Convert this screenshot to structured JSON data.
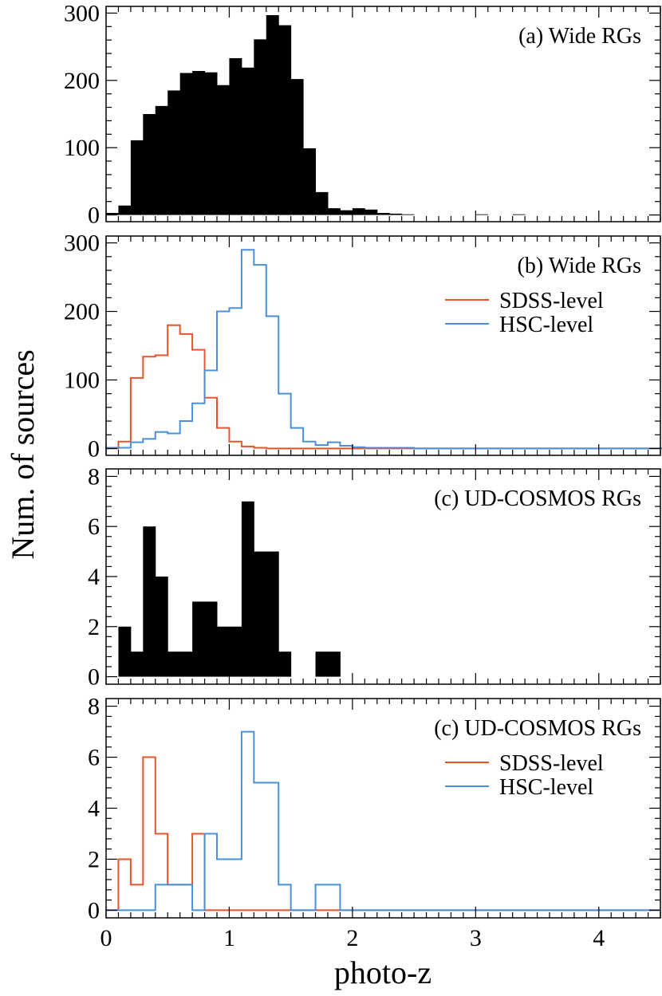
{
  "figure": {
    "ylabel": "Num. of sources",
    "xlabel": "photo-z",
    "xlim": [
      0,
      4.5
    ],
    "xticks": [
      0,
      1,
      2,
      3,
      4
    ]
  },
  "chart_data": [
    {
      "type": "bar",
      "title": "(a) Wide RGs",
      "ylim": [
        -10,
        310
      ],
      "yticks": [
        0,
        100,
        200,
        300
      ],
      "bin_width": 0.1,
      "x_start": 0,
      "filled": true,
      "series": [
        {
          "name": "",
          "color": "#000000",
          "values": [
            3,
            14,
            111,
            150,
            162,
            185,
            211,
            214,
            212,
            193,
            233,
            219,
            261,
            297,
            282,
            202,
            99,
            34,
            10,
            7,
            10,
            8,
            3,
            2,
            1,
            0,
            0,
            0,
            0,
            0,
            1,
            0,
            0,
            1,
            0,
            0,
            0,
            0,
            0,
            0,
            0,
            0,
            0,
            0,
            0,
            0,
            0,
            0,
            0,
            0,
            0,
            0,
            0,
            0,
            0,
            0,
            0,
            0,
            0,
            0,
            0,
            0,
            0,
            0,
            0,
            0,
            0,
            0,
            0,
            0,
            0,
            0,
            0,
            0,
            0,
            0,
            0,
            0,
            0,
            0,
            0,
            0,
            0,
            0,
            0,
            0,
            0,
            0,
            0,
            0
          ]
        }
      ]
    },
    {
      "type": "bar",
      "title": "(b) Wide RGs",
      "ylim": [
        -10,
        310
      ],
      "yticks": [
        0,
        100,
        200,
        300
      ],
      "bin_width": 0.1,
      "x_start": 0,
      "filled": false,
      "legend": "top-right",
      "series": [
        {
          "name": "SDSS-level",
          "color": "#e8542a",
          "values": [
            0,
            10,
            103,
            134,
            136,
            180,
            167,
            144,
            74,
            30,
            10,
            3,
            1,
            0,
            0,
            0,
            0,
            0,
            0,
            0,
            0,
            0,
            0,
            0,
            0,
            0,
            0,
            0,
            0,
            0,
            0,
            0,
            0,
            0,
            0,
            0,
            0,
            0,
            0,
            0,
            0,
            0,
            0,
            0,
            0,
            0,
            0,
            0,
            0,
            0,
            0,
            0,
            0,
            0,
            0,
            0,
            0,
            0,
            0,
            0,
            0,
            0,
            0,
            0,
            0,
            0,
            0,
            0,
            0,
            0,
            0,
            0,
            0,
            0,
            0,
            0,
            0,
            0,
            0,
            0,
            0,
            0,
            0,
            0,
            0,
            0,
            0,
            0,
            0,
            0
          ]
        },
        {
          "name": "HSC-level",
          "color": "#4a8fdc",
          "values": [
            1,
            1,
            9,
            14,
            24,
            22,
            40,
            66,
            114,
            200,
            205,
            290,
            268,
            193,
            80,
            30,
            10,
            5,
            9,
            4,
            2,
            1,
            1,
            1,
            1,
            0,
            0,
            0,
            0,
            0,
            0,
            0,
            0,
            0,
            0,
            0,
            0,
            0,
            0,
            0,
            0,
            0,
            0,
            0,
            0,
            0,
            0,
            0,
            0,
            0,
            0,
            0,
            0,
            0,
            0,
            0,
            0,
            0,
            0,
            0,
            0,
            0,
            0,
            0,
            0,
            0,
            0,
            0,
            0,
            0,
            0,
            0,
            0,
            0,
            0,
            0,
            0,
            0,
            0,
            0,
            0,
            0,
            0,
            0,
            0,
            0,
            0,
            0,
            0,
            0
          ]
        }
      ]
    },
    {
      "type": "bar",
      "title": "(c) UD-COSMOS RGs",
      "ylim": [
        -0.3,
        8.3
      ],
      "yticks": [
        0,
        2,
        4,
        6,
        8
      ],
      "bin_width": 0.1,
      "x_start": 0,
      "filled": true,
      "series": [
        {
          "name": "",
          "color": "#000000",
          "values": [
            0,
            2,
            1,
            6,
            4,
            1,
            1,
            3,
            3,
            2,
            2,
            7,
            5,
            5,
            1,
            0,
            0,
            1,
            1,
            0,
            0,
            0,
            0,
            0,
            0,
            0,
            0,
            0,
            0,
            0,
            0,
            0,
            0,
            0,
            0,
            0,
            0,
            0,
            0,
            0,
            0,
            0,
            0,
            0,
            0
          ]
        }
      ]
    },
    {
      "type": "bar",
      "title": "(c) UD-COSMOS RGs",
      "ylim": [
        -0.3,
        8.3
      ],
      "yticks": [
        0,
        2,
        4,
        6,
        8
      ],
      "bin_width": 0.1,
      "x_start": 0,
      "filled": false,
      "legend": "top-right",
      "series": [
        {
          "name": "SDSS-level",
          "color": "#e8542a",
          "values": [
            0,
            2,
            1,
            6,
            3,
            1,
            1,
            3,
            0,
            0,
            0,
            0,
            0,
            0,
            0,
            0,
            0,
            0,
            0,
            0,
            0,
            0,
            0,
            0,
            0,
            0,
            0,
            0,
            0,
            0,
            0,
            0,
            0,
            0,
            0,
            0,
            0,
            0,
            0,
            0,
            0,
            0,
            0,
            0,
            0
          ]
        },
        {
          "name": "HSC-level",
          "color": "#4a8fdc",
          "values": [
            0,
            0,
            0,
            0,
            1,
            1,
            1,
            0,
            3,
            2,
            2,
            7,
            5,
            5,
            1,
            0,
            0,
            1,
            1,
            0,
            0,
            0,
            0,
            0,
            0,
            0,
            0,
            0,
            0,
            0,
            0,
            0,
            0,
            0,
            0,
            0,
            0,
            0,
            0,
            0,
            0,
            0,
            0,
            0,
            0
          ]
        }
      ]
    }
  ]
}
